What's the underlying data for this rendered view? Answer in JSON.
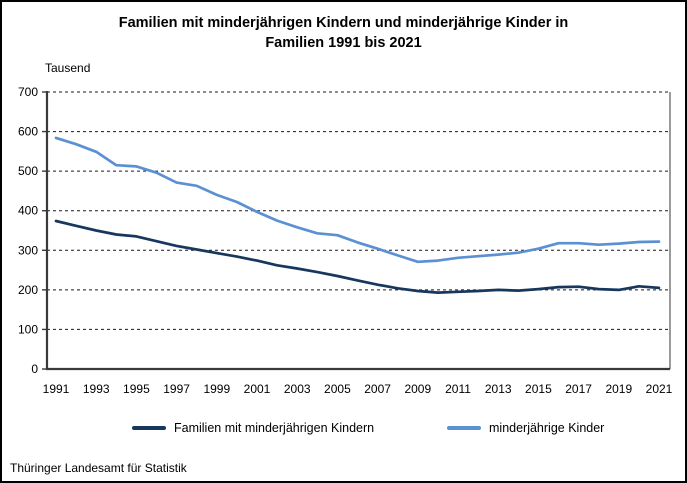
{
  "page": {
    "title_line1": "Familien mit minderjährigen Kindern und minderjährige Kinder in",
    "title_line2": "Familien 1991 bis 2021",
    "unit_label": "Tausend",
    "source": "Thüringer Landesamt für Statistik"
  },
  "colors": {
    "series_familien": "#17375D",
    "series_kinder": "#5B91D2",
    "gridline": "#1a1a1a",
    "axis": "#3a3a3a",
    "plot_border": "#595959"
  },
  "legend": [
    {
      "label": "Familien mit minderjährigen Kindern",
      "color": "#17375D"
    },
    {
      "label": "minderjährige Kinder",
      "color": "#5B91D2"
    }
  ],
  "chart_data": {
    "type": "line",
    "title": "Familien mit minderjährigen Kindern und minderjährige Kinder in Familien 1991 bis 2021",
    "unit": "Tausend",
    "xlabel": "",
    "ylabel": "Tausend",
    "ylim": [
      0,
      700
    ],
    "grid": "horizontal-dashed",
    "legend_position": "bottom",
    "x": [
      1991,
      1992,
      1993,
      1994,
      1995,
      1996,
      1997,
      1998,
      1999,
      2000,
      2001,
      2002,
      2003,
      2004,
      2005,
      2006,
      2007,
      2008,
      2009,
      2010,
      2011,
      2012,
      2013,
      2014,
      2015,
      2016,
      2017,
      2018,
      2019,
      2020,
      2021
    ],
    "x_tick_labels": [
      "1991",
      "1993",
      "1995",
      "1997",
      "1999",
      "2001",
      "2003",
      "2005",
      "2007",
      "2009",
      "2011",
      "2013",
      "2015",
      "2017",
      "2019",
      "2021"
    ],
    "y_ticks": [
      0,
      100,
      200,
      300,
      400,
      500,
      600,
      700
    ],
    "series": [
      {
        "name": "Familien mit minderjährigen Kindern",
        "color": "#17375D",
        "values": [
          374,
          362,
          350,
          340,
          335,
          323,
          311,
          302,
          293,
          284,
          274,
          262,
          254,
          245,
          235,
          224,
          213,
          204,
          197,
          193,
          195,
          197,
          200,
          198,
          202,
          207,
          208,
          202,
          200,
          209,
          205
        ]
      },
      {
        "name": "minderjährige Kinder",
        "color": "#5B91D2",
        "values": [
          584,
          568,
          549,
          515,
          512,
          496,
          471,
          463,
          440,
          422,
          397,
          375,
          358,
          343,
          338,
          320,
          304,
          287,
          271,
          274,
          281,
          285,
          289,
          294,
          304,
          318,
          318,
          314,
          317,
          321,
          322
        ]
      }
    ]
  }
}
